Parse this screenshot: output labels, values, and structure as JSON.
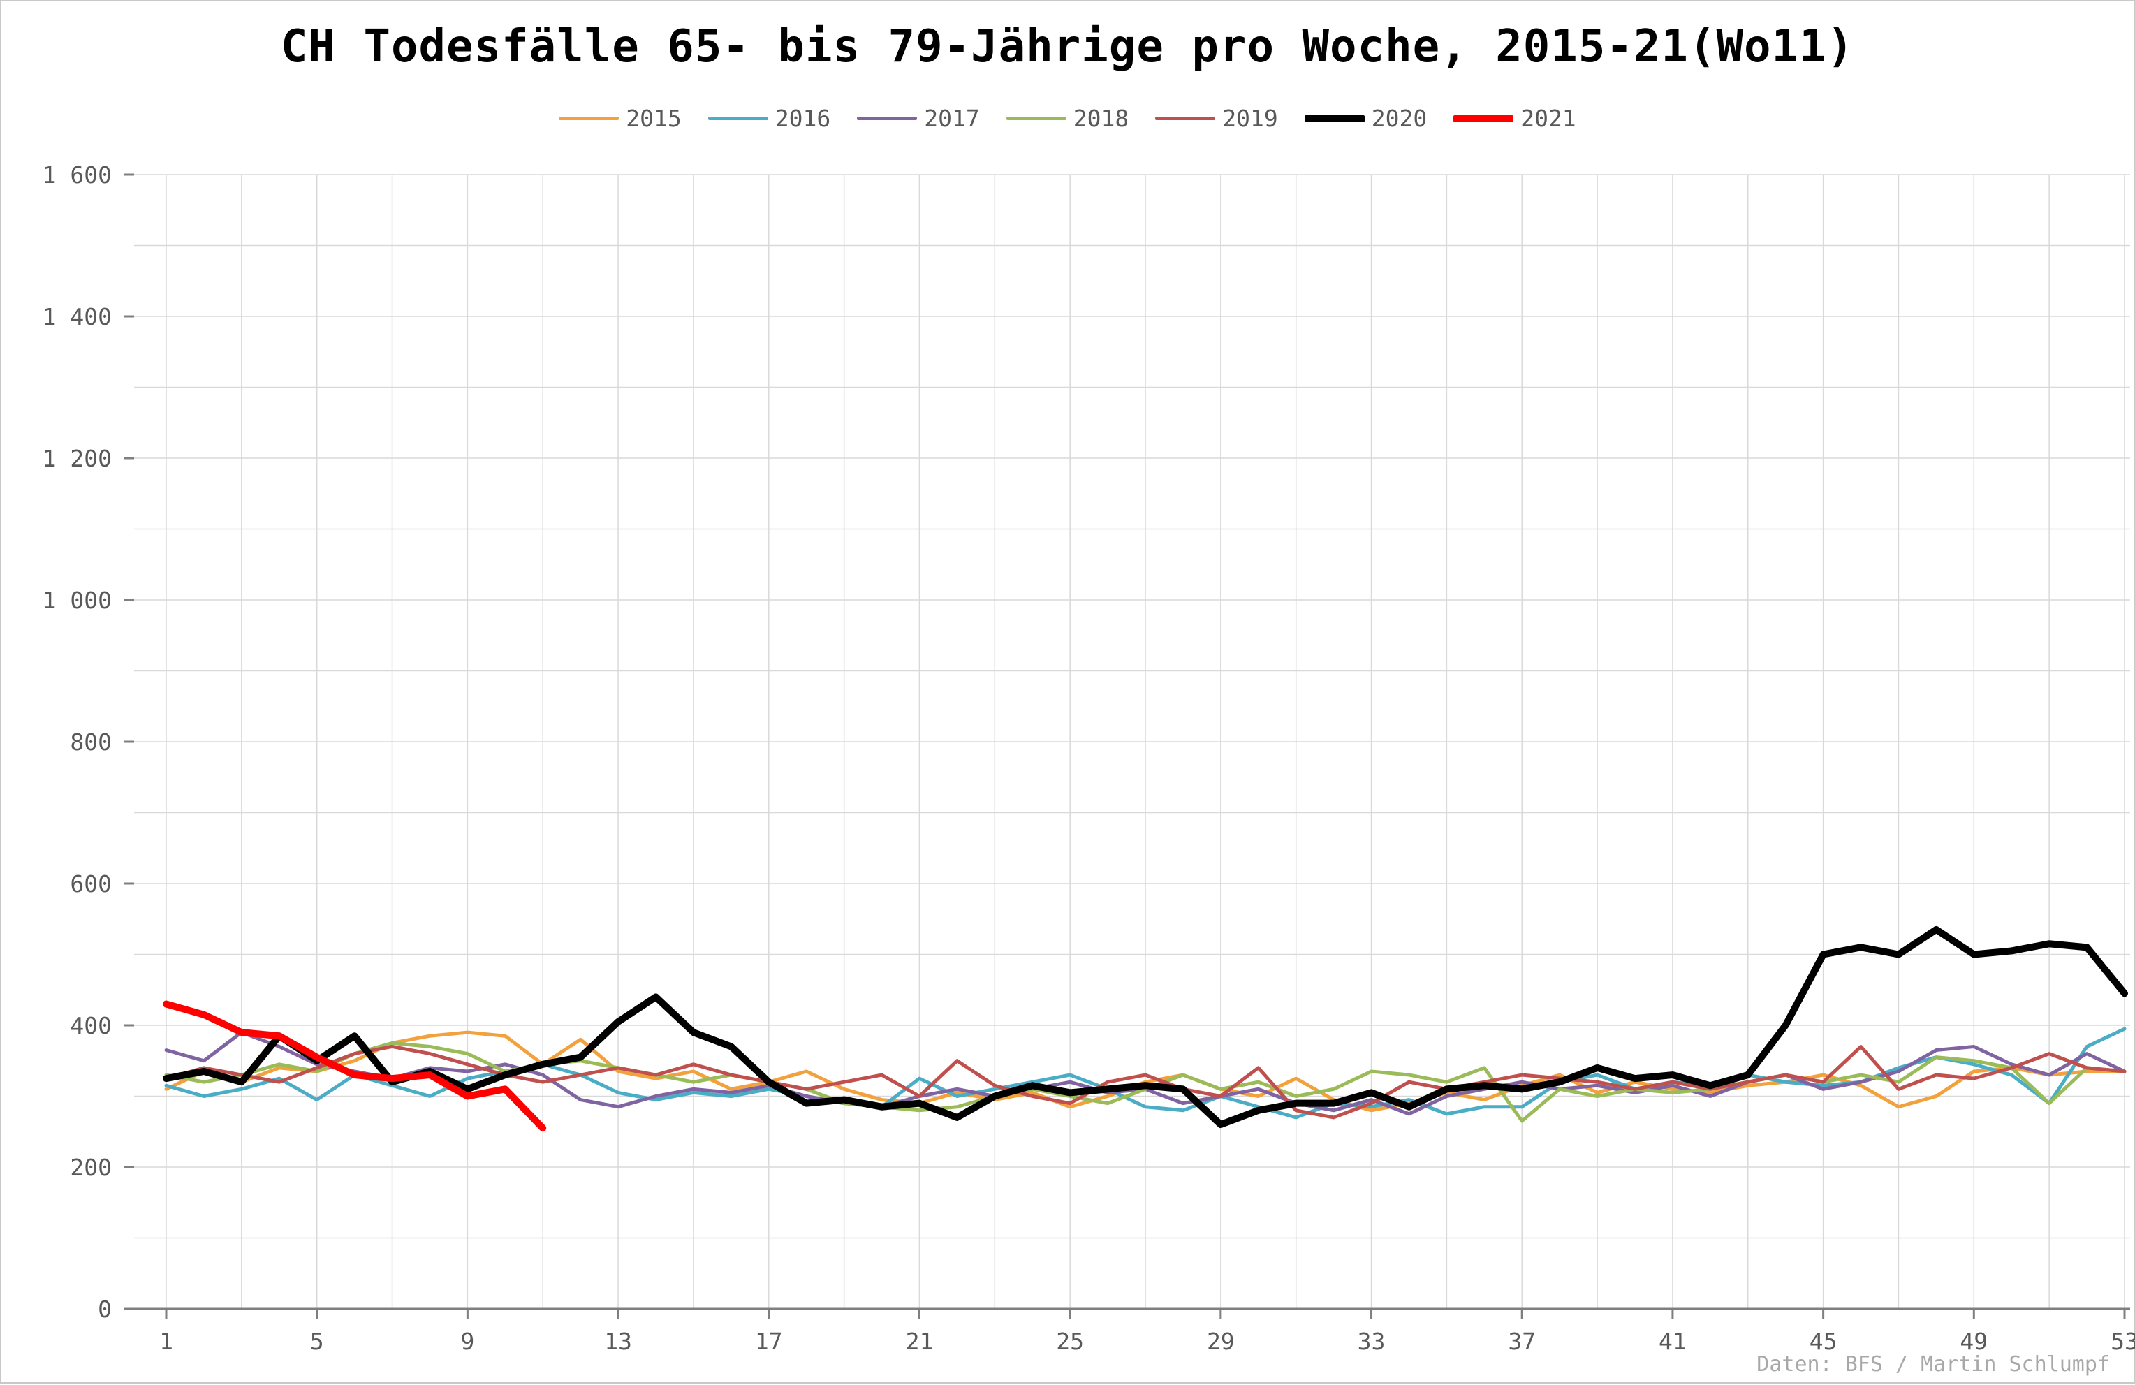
{
  "chart_data": {
    "type": "line",
    "title": "CH Todesfälle 65- bis 79-Jährige pro Woche, 2015-21(Wo11)",
    "xlabel": "",
    "ylabel": "",
    "xlim": [
      1,
      53
    ],
    "ylim": [
      0,
      1600
    ],
    "grid": true,
    "legend_position": "top",
    "x_ticks": [
      1,
      5,
      9,
      13,
      17,
      21,
      25,
      29,
      33,
      37,
      41,
      45,
      49,
      53
    ],
    "y_ticks": [
      0,
      200,
      400,
      600,
      800,
      1000,
      1200,
      1400,
      1600
    ],
    "y_tick_labels": [
      "0",
      "200",
      "400",
      "600",
      "800",
      "1 000",
      "1 200",
      "1 400",
      "1 600"
    ],
    "x_grid_step": 2,
    "y_grid_step": 100,
    "credit": "Daten: BFS / Martin Schlumpf",
    "series": [
      {
        "name": "2015",
        "color": "#F2A13C",
        "stroke_width": 5,
        "values": [
          310,
          335,
          320,
          340,
          335,
          350,
          375,
          385,
          390,
          385,
          345,
          380,
          335,
          325,
          335,
          310,
          320,
          335,
          310,
          295,
          290,
          305,
          295,
          305,
          285,
          300,
          320,
          330,
          310,
          300,
          325,
          295,
          280,
          290,
          305,
          295,
          315,
          330,
          305,
          320,
          310,
          305,
          315,
          320,
          330,
          315,
          285,
          300,
          335,
          340,
          330,
          335,
          335
        ]
      },
      {
        "name": "2016",
        "color": "#4BACC6",
        "stroke_width": 5,
        "values": [
          315,
          300,
          310,
          325,
          295,
          330,
          315,
          300,
          325,
          335,
          345,
          330,
          305,
          295,
          305,
          300,
          310,
          300,
          290,
          285,
          325,
          300,
          310,
          320,
          330,
          310,
          285,
          280,
          300,
          285,
          270,
          290,
          285,
          295,
          275,
          285,
          285,
          320,
          330,
          310,
          320,
          315,
          330,
          320,
          315,
          320,
          340,
          355,
          345,
          330,
          290,
          370,
          395
        ]
      },
      {
        "name": "2017",
        "color": "#8064A2",
        "stroke_width": 5,
        "values": [
          365,
          350,
          390,
          370,
          345,
          335,
          325,
          340,
          335,
          345,
          330,
          295,
          285,
          300,
          310,
          305,
          315,
          300,
          290,
          285,
          300,
          310,
          300,
          310,
          320,
          305,
          310,
          290,
          300,
          310,
          290,
          280,
          295,
          275,
          300,
          310,
          320,
          310,
          315,
          305,
          315,
          300,
          320,
          330,
          310,
          320,
          335,
          365,
          370,
          345,
          330,
          360,
          335
        ]
      },
      {
        "name": "2018",
        "color": "#9BBB59",
        "stroke_width": 5,
        "values": [
          330,
          320,
          330,
          345,
          335,
          360,
          375,
          370,
          360,
          335,
          345,
          350,
          340,
          330,
          320,
          330,
          320,
          310,
          290,
          285,
          280,
          285,
          300,
          310,
          300,
          290,
          310,
          330,
          310,
          320,
          300,
          310,
          335,
          330,
          320,
          340,
          265,
          310,
          300,
          310,
          305,
          310,
          320,
          330,
          320,
          330,
          320,
          355,
          350,
          340,
          290,
          340,
          335
        ]
      },
      {
        "name": "2019",
        "color": "#C0504D",
        "stroke_width": 5,
        "values": [
          325,
          340,
          330,
          320,
          340,
          360,
          370,
          360,
          345,
          330,
          320,
          330,
          340,
          330,
          345,
          330,
          320,
          310,
          320,
          330,
          300,
          350,
          315,
          300,
          290,
          320,
          330,
          310,
          300,
          340,
          280,
          270,
          290,
          320,
          310,
          320,
          330,
          325,
          320,
          310,
          320,
          310,
          320,
          330,
          320,
          370,
          310,
          330,
          325,
          340,
          360,
          340,
          335
        ]
      },
      {
        "name": "2020",
        "color": "#000000",
        "stroke_width": 10,
        "values": [
          325,
          335,
          320,
          385,
          350,
          385,
          320,
          335,
          310,
          330,
          345,
          355,
          405,
          440,
          390,
          370,
          320,
          290,
          295,
          285,
          290,
          270,
          300,
          315,
          305,
          310,
          315,
          310,
          260,
          280,
          290,
          290,
          305,
          285,
          310,
          315,
          310,
          320,
          340,
          325,
          330,
          315,
          330,
          400,
          500,
          510,
          500,
          535,
          500,
          505,
          515,
          510,
          445
        ]
      },
      {
        "name": "2021",
        "color": "#FF0000",
        "stroke_width": 10,
        "values": [
          430,
          415,
          390,
          385,
          355,
          330,
          325,
          330,
          300,
          310,
          255
        ]
      }
    ]
  }
}
